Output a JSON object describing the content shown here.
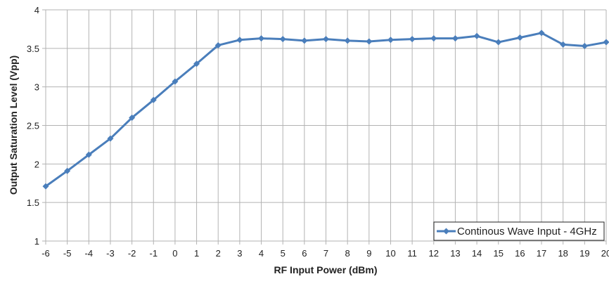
{
  "chart_data": {
    "type": "line",
    "title": "",
    "xlabel": "RF Input Power (dBm)",
    "ylabel": "Output Saturation Level (Vpp)",
    "x": [
      -6,
      -5,
      -4,
      -3,
      -2,
      -1,
      0,
      1,
      2,
      3,
      4,
      5,
      6,
      7,
      8,
      9,
      10,
      11,
      12,
      13,
      14,
      15,
      16,
      17,
      18,
      19,
      20
    ],
    "xlim": [
      -6,
      20
    ],
    "ylim": [
      1,
      4
    ],
    "yticks": [
      1,
      1.5,
      2,
      2.5,
      3,
      3.5,
      4
    ],
    "ytick_labels": [
      "1",
      "1.5",
      "2",
      "2.5",
      "3",
      "3.5",
      "4"
    ],
    "grid": true,
    "legend_position": "lower right",
    "series": [
      {
        "name": "Continous Wave Input - 4GHz",
        "color": "#4a7ebb",
        "marker": "diamond",
        "values": [
          1.71,
          1.91,
          2.12,
          2.33,
          2.6,
          2.83,
          3.07,
          3.3,
          3.54,
          3.61,
          3.63,
          3.62,
          3.6,
          3.62,
          3.6,
          3.59,
          3.61,
          3.62,
          3.63,
          3.63,
          3.66,
          3.58,
          3.64,
          3.7,
          3.55,
          3.53,
          3.58
        ]
      }
    ]
  }
}
